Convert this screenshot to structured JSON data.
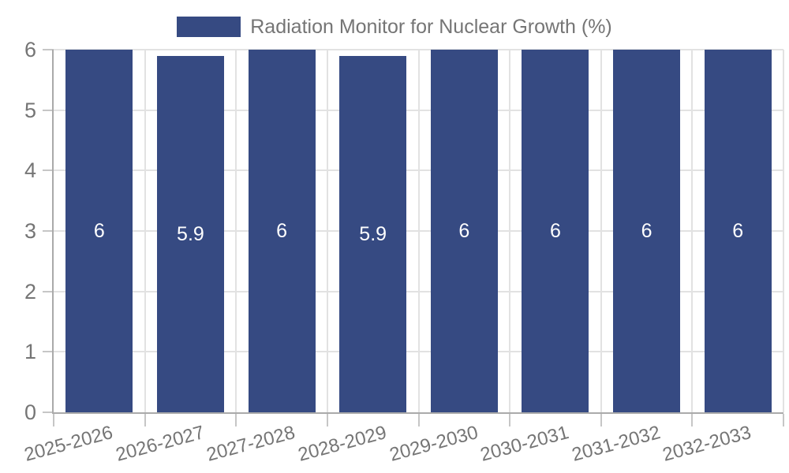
{
  "chart_data": {
    "type": "bar",
    "title": "",
    "legend_label": "Radiation Monitor for Nuclear Growth (%)",
    "legend_position": "top",
    "categories": [
      "2025-2026",
      "2026-2027",
      "2027-2028",
      "2028-2029",
      "2029-2030",
      "2030-2031",
      "2031-2032",
      "2032-2033"
    ],
    "values": [
      6,
      5.9,
      6,
      5.9,
      6,
      6,
      6,
      6
    ],
    "bar_labels": [
      "6",
      "5.9",
      "6",
      "5.9",
      "6",
      "6",
      "6",
      "6"
    ],
    "ylim": [
      0,
      6
    ],
    "yticks": [
      0,
      1,
      2,
      3,
      4,
      5,
      6
    ],
    "grid": true,
    "x_label_rotation_deg": -15,
    "colors": {
      "bar": "#364A82",
      "bar_label_text": "#ffffff",
      "gridline": "#e2e2e2",
      "axis": "#aaaaaa",
      "tick_mark": "#c6c6c6",
      "tick_text": "#757575",
      "background": "#ffffff"
    }
  }
}
